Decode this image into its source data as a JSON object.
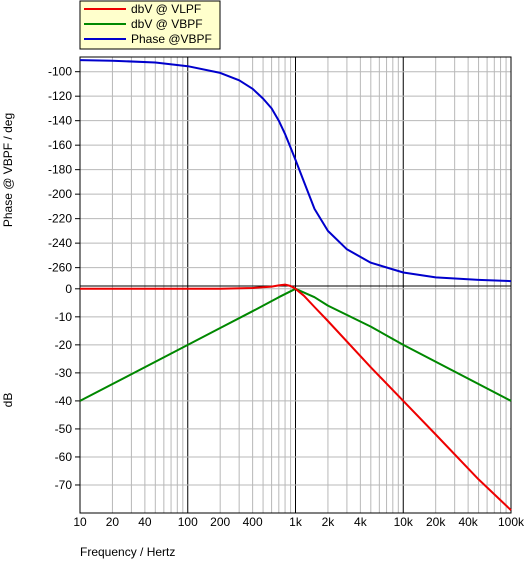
{
  "chart_data": [
    {
      "type": "line",
      "panel": "top",
      "ylabel": "Phase @ VBPF / deg",
      "ylim": [
        -275,
        -88
      ],
      "yticks": [
        -100,
        -120,
        -140,
        -160,
        -180,
        -200,
        -220,
        -240,
        -260
      ],
      "x_scale": "log",
      "xlim": [
        10,
        100000
      ],
      "grid": true,
      "series": [
        {
          "name": "Phase @VBPF",
          "color": "#0000cc",
          "x": [
            10,
            20,
            50,
            100,
            200,
            300,
            400,
            500,
            600,
            700,
            800,
            900,
            1000,
            1200,
            1500,
            2000,
            3000,
            5000,
            10000,
            20000,
            50000,
            100000
          ],
          "y": [
            -90.5,
            -91,
            -92.5,
            -95.5,
            -101,
            -107,
            -114,
            -122,
            -130,
            -140,
            -151,
            -162,
            -172,
            -190,
            -212,
            -230,
            -245,
            -256,
            -264,
            -268,
            -270,
            -271
          ]
        }
      ]
    },
    {
      "type": "line",
      "panel": "bottom",
      "ylabel": "dB",
      "xlabel": "Frequency / Hertz",
      "ylim": [
        -80,
        1
      ],
      "yticks": [
        0,
        -10,
        -20,
        -30,
        -40,
        -50,
        -60,
        -70
      ],
      "x_scale": "log",
      "xlim": [
        10,
        100000
      ],
      "xtick_labels": [
        "10",
        "20",
        "40",
        "100",
        "200",
        "400",
        "1k",
        "2k",
        "4k",
        "10k",
        "20k",
        "40k",
        "100k"
      ],
      "xtick_values": [
        10,
        20,
        40,
        100,
        200,
        400,
        1000,
        2000,
        4000,
        10000,
        20000,
        40000,
        100000
      ],
      "grid": true,
      "series": [
        {
          "name": "dbV @ VLPF",
          "color": "#ee0000",
          "x": [
            10,
            100,
            200,
            400,
            600,
            700,
            800,
            900,
            1000,
            1200,
            1500,
            2000,
            5000,
            10000,
            20000,
            50000,
            100000
          ],
          "y": [
            0,
            0,
            0,
            0.3,
            0.8,
            1.2,
            1.5,
            1.0,
            0,
            -2.5,
            -6.5,
            -11.5,
            -28,
            -40,
            -52,
            -68,
            -79
          ]
        },
        {
          "name": "dbV @ VBPF",
          "color": "#008800",
          "x": [
            10,
            100,
            200,
            400,
            700,
            1000,
            1500,
            2000,
            5000,
            10000,
            100000
          ],
          "y": [
            -40,
            -20,
            -14,
            -8,
            -3,
            0,
            -3,
            -6,
            -13.5,
            -20,
            -40
          ]
        }
      ]
    }
  ],
  "legend": {
    "placement": "top-left",
    "entries": [
      {
        "label": "dbV @ VLPF",
        "color": "#ee0000"
      },
      {
        "label": "dbV @ VBPF",
        "color": "#008800"
      },
      {
        "label": "Phase @VBPF",
        "color": "#0000cc"
      }
    ]
  },
  "colors": {
    "grid_major": "#000000",
    "grid_minor": "#b8b8b8",
    "background": "#ffffff",
    "legend_bg": "#ffffcc"
  }
}
